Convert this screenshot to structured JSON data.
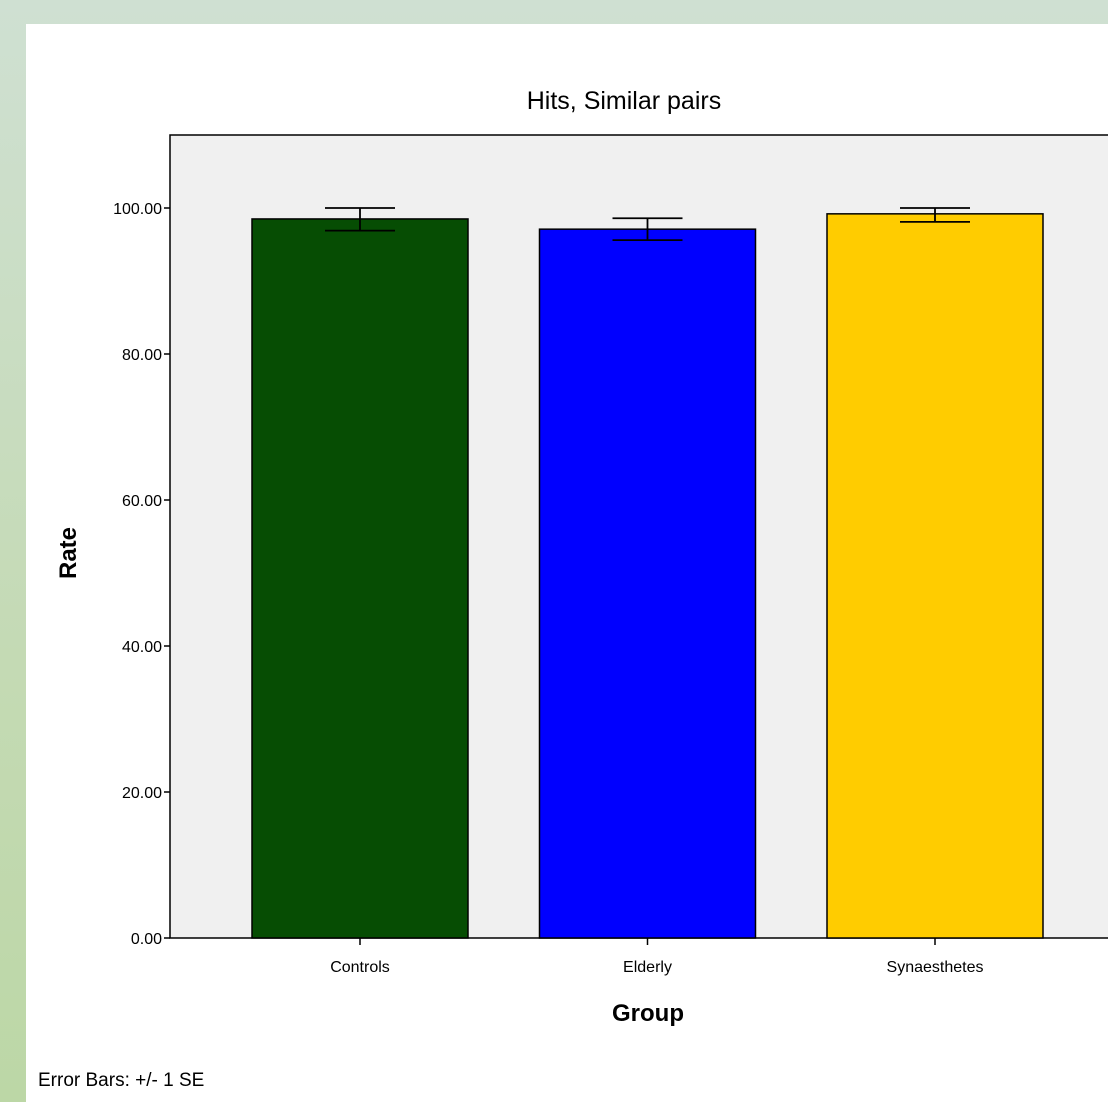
{
  "chart_data": {
    "type": "bar",
    "title": "Hits, Similar pairs",
    "xlabel": "Group",
    "ylabel": "Rate",
    "categories": [
      "Controls",
      "Elderly",
      "Synaesthetes"
    ],
    "values": [
      98.5,
      97.1,
      99.2
    ],
    "error_bars": [
      {
        "low": 96.9,
        "high": 100.0
      },
      {
        "low": 95.6,
        "high": 98.6
      },
      {
        "low": 98.1,
        "high": 100.0
      }
    ],
    "colors": [
      "#064d03",
      "#0000ff",
      "#ffcc00"
    ],
    "ylim": [
      0,
      110
    ],
    "yticks": [
      "0.00",
      "20.00",
      "40.00",
      "60.00",
      "80.00",
      "100.00"
    ],
    "ytick_values": [
      0,
      20,
      40,
      60,
      80,
      100
    ],
    "plot_background": "#f0f0f0",
    "grid": false,
    "footnote": "Error Bars: +/- 1 SE"
  }
}
